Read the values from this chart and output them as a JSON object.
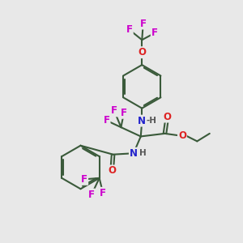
{
  "bg_color": "#e8e8e8",
  "bond_color": "#3a5a3a",
  "bond_width": 1.5,
  "dbo": 0.06,
  "atom_colors": {
    "F": "#cc00cc",
    "O": "#dd2222",
    "N": "#2222cc",
    "H": "#555555",
    "C": "#3a5a3a"
  },
  "font_size": 8.5,
  "font_size_small": 7.5
}
